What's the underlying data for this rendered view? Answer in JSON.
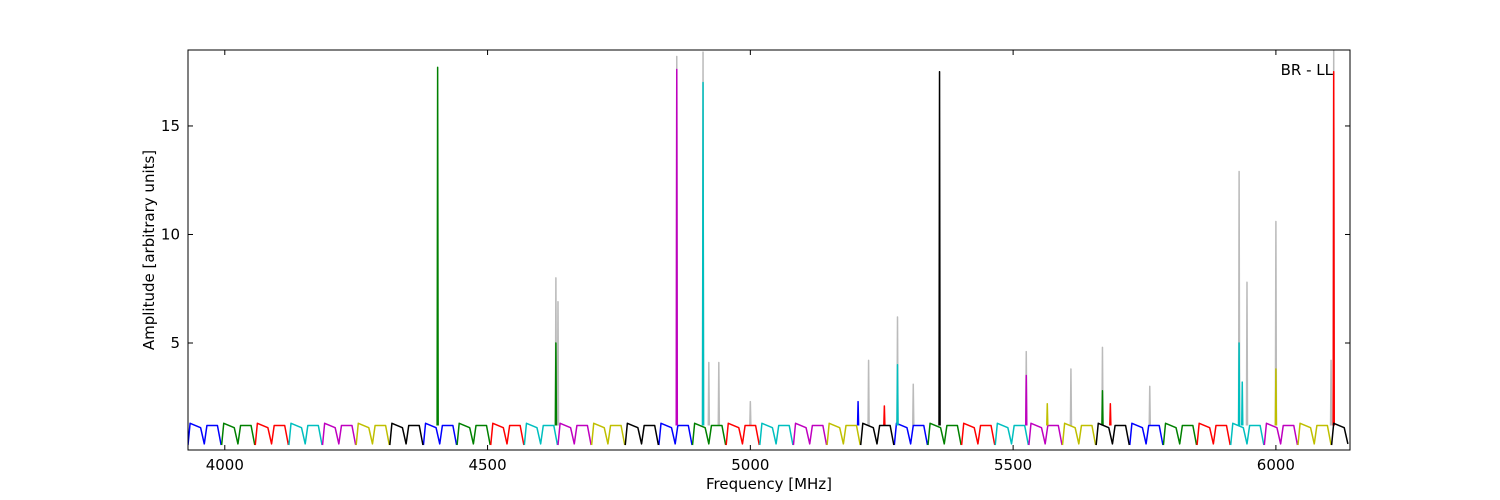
{
  "chart_data": {
    "type": "line",
    "xlabel": "Frequency [MHz]",
    "ylabel": "Amplitude [arbitrary units]",
    "annotation": "BR - LL",
    "xlim": [
      3930,
      6141
    ],
    "ylim": [
      0.07,
      18.5
    ],
    "xticks": [
      4000,
      4500,
      5000,
      5500,
      6000
    ],
    "yticks": [
      5,
      10,
      15
    ],
    "series": [
      {
        "color": "#bbbbbb",
        "x": [
          4629,
          4630,
          4631,
          4632,
          4633,
          4634,
          4635,
          4636,
          4859,
          4860,
          4861,
          4862,
          4909,
          4910,
          4911,
          4912,
          4920,
          4921,
          4922,
          4923,
          4939,
          4940,
          4941,
          4942,
          4999,
          5000,
          5001,
          5002,
          5224,
          5225,
          5226,
          5227,
          5279,
          5280,
          5281,
          5282,
          5309,
          5310,
          5311,
          5312,
          5524,
          5525,
          5526,
          5527,
          5609,
          5610,
          5611,
          5612,
          5669,
          5670,
          5671,
          5672,
          5759,
          5760,
          5761,
          5762,
          5929,
          5930,
          5931,
          5932,
          5944,
          5945,
          5946,
          5947,
          5999,
          6000,
          6001,
          6002,
          6104,
          6105,
          6106,
          6107,
          6109,
          6110,
          6111
        ],
        "values": [
          1.2,
          8.0,
          1.2,
          null,
          1.2,
          6.9,
          1.2,
          null,
          1.2,
          18.2,
          1.2,
          null,
          1.2,
          18.4,
          1.2,
          null,
          1.2,
          4.1,
          1.2,
          null,
          1.2,
          4.1,
          1.2,
          null,
          1.2,
          2.3,
          1.2,
          null,
          1.2,
          4.2,
          1.2,
          null,
          1.2,
          6.2,
          1.2,
          null,
          1.2,
          3.1,
          1.2,
          null,
          1.2,
          4.6,
          1.2,
          null,
          1.2,
          3.8,
          1.2,
          null,
          1.2,
          4.8,
          1.2,
          null,
          1.2,
          3.0,
          1.2,
          null,
          1.2,
          12.9,
          1.2,
          null,
          1.2,
          7.8,
          1.2,
          null,
          1.2,
          10.6,
          1.2,
          null,
          1.2,
          4.2,
          1.2,
          null,
          1.2,
          18.5,
          1.2
        ]
      },
      {
        "color": "#0000ff",
        "x": [
          3930,
          3934,
          3954,
          3961,
          3966,
          3986,
          3993,
          3994,
          4378,
          4382,
          4402,
          4409,
          4414,
          4434,
          4441,
          4442,
          4826,
          4830,
          4850,
          4857,
          4862,
          4882,
          4889,
          4890,
          5274,
          5278,
          5298,
          5305,
          5310,
          5330,
          5337,
          5338,
          5722,
          5726,
          5746,
          5753,
          5758,
          5778,
          5785,
          5786,
          5204,
          5205,
          5206
        ],
        "values": [
          0.3,
          1.3,
          1.1,
          0.35,
          1.2,
          1.2,
          0.3,
          null,
          0.3,
          1.3,
          1.1,
          0.35,
          1.2,
          1.2,
          0.3,
          null,
          0.3,
          1.3,
          1.1,
          0.35,
          1.2,
          1.2,
          0.3,
          null,
          0.3,
          1.3,
          1.1,
          0.35,
          1.2,
          1.2,
          0.3,
          null,
          0.3,
          1.3,
          1.1,
          0.35,
          1.2,
          1.2,
          0.3,
          null,
          1.2,
          2.3,
          1.2
        ]
      },
      {
        "color": "#008000",
        "x": [
          3994,
          3998,
          4018,
          4025,
          4030,
          4050,
          4057,
          4058,
          4442,
          4446,
          4466,
          4473,
          4478,
          4498,
          4505,
          4506,
          4890,
          4894,
          4914,
          4921,
          4926,
          4946,
          4953,
          4954,
          5338,
          5342,
          5362,
          5369,
          5374,
          5394,
          5401,
          5402,
          5786,
          5790,
          5810,
          5817,
          5822,
          5842,
          5849,
          5850,
          4404,
          4405,
          4406,
          4407,
          4629,
          4630,
          4631,
          4632,
          5669,
          5670,
          5671
        ],
        "values": [
          0.3,
          1.3,
          1.1,
          0.35,
          1.2,
          1.2,
          0.3,
          null,
          0.3,
          1.3,
          1.1,
          0.35,
          1.2,
          1.2,
          0.3,
          null,
          0.3,
          1.3,
          1.1,
          0.35,
          1.2,
          1.2,
          0.3,
          null,
          0.3,
          1.3,
          1.1,
          0.35,
          1.2,
          1.2,
          0.3,
          null,
          0.3,
          1.3,
          1.1,
          0.35,
          1.2,
          1.2,
          0.3,
          null,
          1.2,
          17.7,
          1.2,
          null,
          1.2,
          5.0,
          1.2,
          null,
          1.2,
          2.8,
          1.2
        ]
      },
      {
        "color": "#ff0000",
        "x": [
          4058,
          4062,
          4082,
          4089,
          4094,
          4114,
          4121,
          4122,
          4506,
          4510,
          4530,
          4537,
          4542,
          4562,
          4569,
          4570,
          4954,
          4958,
          4978,
          4985,
          4990,
          5010,
          5017,
          5018,
          5402,
          5406,
          5426,
          5433,
          5438,
          5458,
          5465,
          5466,
          5850,
          5854,
          5874,
          5881,
          5886,
          5906,
          5913,
          5914,
          6109,
          6110,
          6111,
          6112,
          5684,
          5685,
          5686,
          5687,
          5254,
          5255,
          5256
        ],
        "values": [
          0.3,
          1.3,
          1.1,
          0.35,
          1.2,
          1.2,
          0.3,
          null,
          0.3,
          1.3,
          1.1,
          0.35,
          1.2,
          1.2,
          0.3,
          null,
          0.3,
          1.3,
          1.1,
          0.35,
          1.2,
          1.2,
          0.3,
          null,
          0.3,
          1.3,
          1.1,
          0.35,
          1.2,
          1.2,
          0.3,
          null,
          0.3,
          1.3,
          1.1,
          0.35,
          1.2,
          1.2,
          0.3,
          null,
          1.2,
          17.5,
          1.2,
          null,
          1.2,
          2.2,
          1.2,
          null,
          1.2,
          2.1,
          1.2
        ]
      },
      {
        "color": "#00bfbf",
        "x": [
          4122,
          4126,
          4146,
          4153,
          4158,
          4178,
          4185,
          4186,
          4570,
          4574,
          4594,
          4601,
          4606,
          4626,
          4633,
          4634,
          5018,
          5022,
          5042,
          5049,
          5054,
          5074,
          5081,
          5082,
          5466,
          5470,
          5490,
          5497,
          5502,
          5522,
          5529,
          5530,
          5914,
          5918,
          5938,
          5945,
          5950,
          5970,
          5977,
          5978,
          4909,
          4910,
          4911,
          4912,
          5279,
          5280,
          5281,
          5282,
          5929,
          5930,
          5931,
          5932,
          5935,
          5936,
          5937
        ],
        "values": [
          0.3,
          1.3,
          1.1,
          0.35,
          1.2,
          1.2,
          0.3,
          null,
          0.3,
          1.3,
          1.1,
          0.35,
          1.2,
          1.2,
          0.3,
          null,
          0.3,
          1.3,
          1.1,
          0.35,
          1.2,
          1.2,
          0.3,
          null,
          0.3,
          1.3,
          1.1,
          0.35,
          1.2,
          1.2,
          0.3,
          null,
          0.3,
          1.3,
          1.1,
          0.35,
          1.2,
          1.2,
          0.3,
          null,
          1.2,
          17.0,
          1.2,
          null,
          1.2,
          4.0,
          1.2,
          null,
          1.2,
          5.0,
          1.2,
          null,
          1.2,
          3.2,
          1.2
        ]
      },
      {
        "color": "#bf00bf",
        "x": [
          4186,
          4190,
          4210,
          4217,
          4222,
          4242,
          4249,
          4250,
          4634,
          4638,
          4658,
          4665,
          4670,
          4690,
          4697,
          4698,
          5082,
          5086,
          5106,
          5113,
          5118,
          5138,
          5145,
          5146,
          5530,
          5534,
          5554,
          5561,
          5566,
          5586,
          5593,
          5594,
          5978,
          5982,
          6002,
          6009,
          6014,
          6034,
          6041,
          6042,
          4859,
          4860,
          4861,
          4862,
          5524,
          5525,
          5526
        ],
        "values": [
          0.3,
          1.3,
          1.1,
          0.35,
          1.2,
          1.2,
          0.3,
          null,
          0.3,
          1.3,
          1.1,
          0.35,
          1.2,
          1.2,
          0.3,
          null,
          0.3,
          1.3,
          1.1,
          0.35,
          1.2,
          1.2,
          0.3,
          null,
          0.3,
          1.3,
          1.1,
          0.35,
          1.2,
          1.2,
          0.3,
          null,
          0.3,
          1.3,
          1.1,
          0.35,
          1.2,
          1.2,
          0.3,
          null,
          1.2,
          17.6,
          1.2,
          null,
          1.2,
          3.5,
          1.2
        ]
      },
      {
        "color": "#bfbf00",
        "x": [
          4250,
          4254,
          4274,
          4281,
          4286,
          4306,
          4313,
          4314,
          4698,
          4702,
          4722,
          4729,
          4734,
          4754,
          4761,
          4762,
          5146,
          5150,
          5170,
          5177,
          5182,
          5202,
          5209,
          5210,
          5594,
          5598,
          5618,
          5625,
          5630,
          5650,
          5657,
          5658,
          6042,
          6046,
          6066,
          6073,
          6078,
          6098,
          6105,
          6106,
          5999,
          6000,
          6001,
          6002,
          5564,
          5565,
          5566
        ],
        "values": [
          0.3,
          1.3,
          1.1,
          0.35,
          1.2,
          1.2,
          0.3,
          null,
          0.3,
          1.3,
          1.1,
          0.35,
          1.2,
          1.2,
          0.3,
          null,
          0.3,
          1.3,
          1.1,
          0.35,
          1.2,
          1.2,
          0.3,
          null,
          0.3,
          1.3,
          1.1,
          0.35,
          1.2,
          1.2,
          0.3,
          null,
          0.3,
          1.3,
          1.1,
          0.35,
          1.2,
          1.2,
          0.3,
          null,
          1.2,
          3.8,
          1.2,
          null,
          1.2,
          2.2,
          1.2
        ]
      },
      {
        "color": "#000000",
        "x": [
          4314,
          4318,
          4338,
          4345,
          4350,
          4370,
          4377,
          4378,
          4762,
          4766,
          4786,
          4793,
          4798,
          4818,
          4825,
          4826,
          5210,
          5214,
          5234,
          5241,
          5246,
          5266,
          5273,
          5274,
          5658,
          5662,
          5682,
          5689,
          5694,
          5714,
          5721,
          5722,
          6106,
          6110,
          6130,
          6137,
          6138,
          5359,
          5360,
          5361
        ],
        "values": [
          0.3,
          1.3,
          1.1,
          0.35,
          1.2,
          1.2,
          0.3,
          null,
          0.3,
          1.3,
          1.1,
          0.35,
          1.2,
          1.2,
          0.3,
          null,
          0.3,
          1.3,
          1.1,
          0.35,
          1.2,
          1.2,
          0.3,
          null,
          0.3,
          1.3,
          1.1,
          0.35,
          1.2,
          1.2,
          0.3,
          null,
          0.3,
          1.3,
          1.1,
          0.35,
          null,
          1.2,
          17.5,
          1.2
        ]
      }
    ]
  }
}
